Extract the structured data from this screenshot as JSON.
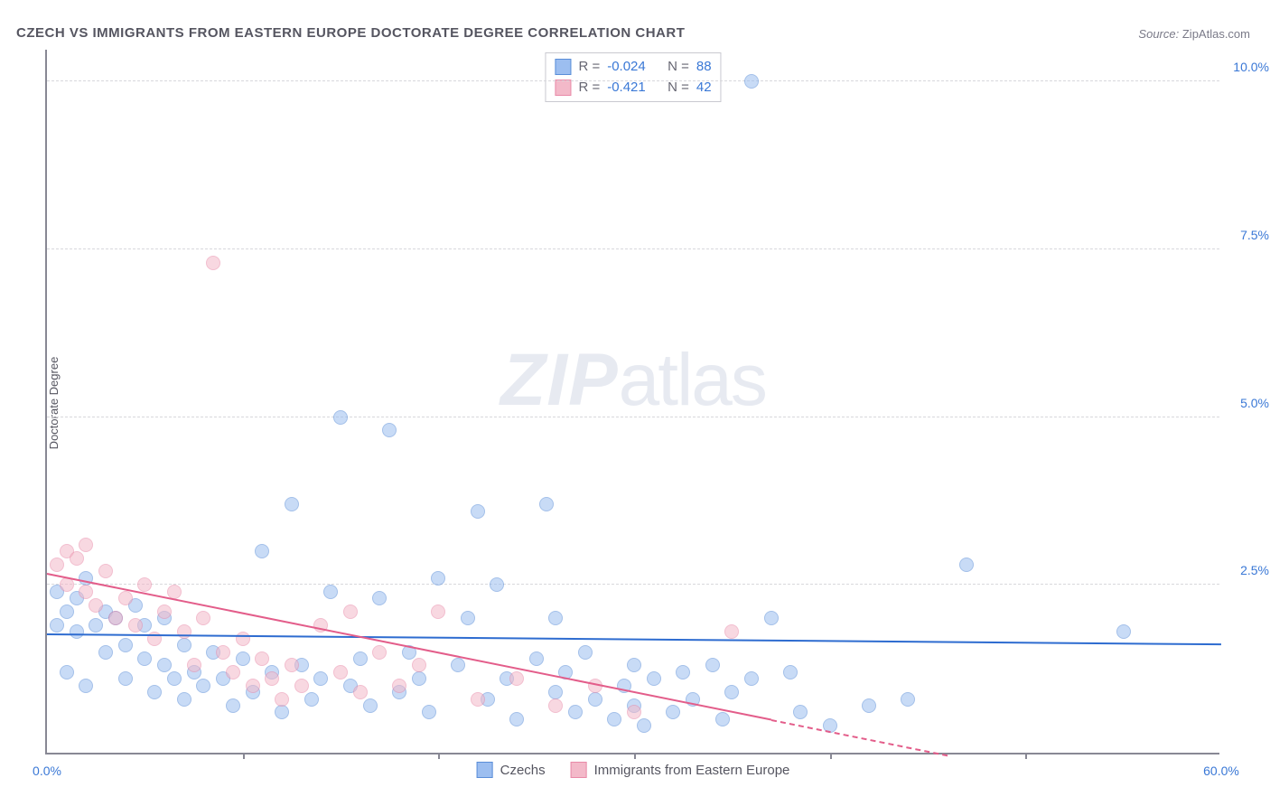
{
  "title": "CZECH VS IMMIGRANTS FROM EASTERN EUROPE DOCTORATE DEGREE CORRELATION CHART",
  "source_label": "Source:",
  "source_value": "ZipAtlas.com",
  "ylabel": "Doctorate Degree",
  "watermark_zip": "ZIP",
  "watermark_atlas": "atlas",
  "chart": {
    "type": "scatter",
    "xlim": [
      0,
      60
    ],
    "ylim": [
      0,
      10.5
    ],
    "ytick_values": [
      2.5,
      5.0,
      7.5,
      10.0
    ],
    "ytick_labels": [
      "2.5%",
      "5.0%",
      "7.5%",
      "10.0%"
    ],
    "xtick_values": [
      10,
      20,
      30,
      40,
      50
    ],
    "x_axis_labels": [
      {
        "x": 0,
        "text": "0.0%"
      },
      {
        "x": 60,
        "text": "60.0%"
      }
    ],
    "background_color": "#ffffff",
    "grid_color": "#d8d8dc",
    "axis_color": "#888894",
    "tick_label_color": "#3a78d6",
    "point_radius": 8,
    "point_opacity": 0.55
  },
  "series": [
    {
      "name": "Czechs",
      "fill_color": "#9cbef0",
      "stroke_color": "#5a8ed8",
      "trend_color": "#2e6cd0",
      "trend": {
        "x1": 0,
        "y1": 1.75,
        "x2": 60,
        "y2": 1.6,
        "dash_after": 60
      },
      "R": "-0.024",
      "N": "88",
      "points": [
        [
          0.5,
          1.9
        ],
        [
          0.5,
          2.4
        ],
        [
          1,
          2.1
        ],
        [
          1,
          1.2
        ],
        [
          1.5,
          1.8
        ],
        [
          1.5,
          2.3
        ],
        [
          2,
          2.6
        ],
        [
          2,
          1.0
        ],
        [
          2.5,
          1.9
        ],
        [
          3,
          1.5
        ],
        [
          3,
          2.1
        ],
        [
          3.5,
          2.0
        ],
        [
          4,
          1.6
        ],
        [
          4,
          1.1
        ],
        [
          4.5,
          2.2
        ],
        [
          5,
          1.4
        ],
        [
          5,
          1.9
        ],
        [
          5.5,
          0.9
        ],
        [
          6,
          1.3
        ],
        [
          6,
          2.0
        ],
        [
          6.5,
          1.1
        ],
        [
          7,
          1.6
        ],
        [
          7,
          0.8
        ],
        [
          7.5,
          1.2
        ],
        [
          8,
          1.0
        ],
        [
          8.5,
          1.5
        ],
        [
          9,
          1.1
        ],
        [
          9.5,
          0.7
        ],
        [
          10,
          1.4
        ],
        [
          10.5,
          0.9
        ],
        [
          11,
          3.0
        ],
        [
          11.5,
          1.2
        ],
        [
          12,
          0.6
        ],
        [
          12.5,
          3.7
        ],
        [
          13,
          1.3
        ],
        [
          13.5,
          0.8
        ],
        [
          14,
          1.1
        ],
        [
          14.5,
          2.4
        ],
        [
          15,
          5.0
        ],
        [
          15.5,
          1.0
        ],
        [
          16,
          1.4
        ],
        [
          16.5,
          0.7
        ],
        [
          17,
          2.3
        ],
        [
          17.5,
          4.8
        ],
        [
          18,
          0.9
        ],
        [
          18.5,
          1.5
        ],
        [
          19,
          1.1
        ],
        [
          19.5,
          0.6
        ],
        [
          20,
          2.6
        ],
        [
          21,
          1.3
        ],
        [
          21.5,
          2.0
        ],
        [
          22,
          3.6
        ],
        [
          22.5,
          0.8
        ],
        [
          23,
          2.5
        ],
        [
          23.5,
          1.1
        ],
        [
          24,
          0.5
        ],
        [
          25,
          1.4
        ],
        [
          25.5,
          3.7
        ],
        [
          26,
          0.9
        ],
        [
          26,
          2.0
        ],
        [
          26.5,
          1.2
        ],
        [
          27,
          0.6
        ],
        [
          27.5,
          1.5
        ],
        [
          28,
          0.8
        ],
        [
          29,
          0.5
        ],
        [
          29.5,
          1.0
        ],
        [
          30,
          0.7
        ],
        [
          30,
          1.3
        ],
        [
          30.5,
          0.4
        ],
        [
          31,
          1.1
        ],
        [
          32,
          0.6
        ],
        [
          32.5,
          1.2
        ],
        [
          33,
          0.8
        ],
        [
          34,
          1.3
        ],
        [
          34.5,
          0.5
        ],
        [
          35,
          0.9
        ],
        [
          36,
          1.1
        ],
        [
          37,
          2.0
        ],
        [
          38,
          1.2
        ],
        [
          38.5,
          0.6
        ],
        [
          40,
          0.4
        ],
        [
          42,
          0.7
        ],
        [
          44,
          0.8
        ],
        [
          47,
          2.8
        ],
        [
          55,
          1.8
        ],
        [
          36,
          10.0
        ]
      ]
    },
    {
      "name": "Immigrants from Eastern Europe",
      "fill_color": "#f3b9c9",
      "stroke_color": "#e98aa8",
      "trend_color": "#e35d8a",
      "trend": {
        "x1": 0,
        "y1": 2.65,
        "x2": 40,
        "y2": 0.3,
        "dash_after": 37
      },
      "R": "-0.421",
      "N": "42",
      "points": [
        [
          0.5,
          2.8
        ],
        [
          1,
          2.5
        ],
        [
          1,
          3.0
        ],
        [
          1.5,
          2.9
        ],
        [
          2,
          2.4
        ],
        [
          2,
          3.1
        ],
        [
          2.5,
          2.2
        ],
        [
          3,
          2.7
        ],
        [
          3.5,
          2.0
        ],
        [
          4,
          2.3
        ],
        [
          4.5,
          1.9
        ],
        [
          5,
          2.5
        ],
        [
          5.5,
          1.7
        ],
        [
          6,
          2.1
        ],
        [
          6.5,
          2.4
        ],
        [
          7,
          1.8
        ],
        [
          7.5,
          1.3
        ],
        [
          8,
          2.0
        ],
        [
          8.5,
          7.3
        ],
        [
          9,
          1.5
        ],
        [
          9.5,
          1.2
        ],
        [
          10,
          1.7
        ],
        [
          10.5,
          1.0
        ],
        [
          11,
          1.4
        ],
        [
          11.5,
          1.1
        ],
        [
          12,
          0.8
        ],
        [
          12.5,
          1.3
        ],
        [
          13,
          1.0
        ],
        [
          14,
          1.9
        ],
        [
          15,
          1.2
        ],
        [
          15.5,
          2.1
        ],
        [
          16,
          0.9
        ],
        [
          17,
          1.5
        ],
        [
          18,
          1.0
        ],
        [
          19,
          1.3
        ],
        [
          20,
          2.1
        ],
        [
          22,
          0.8
        ],
        [
          24,
          1.1
        ],
        [
          26,
          0.7
        ],
        [
          28,
          1.0
        ],
        [
          30,
          0.6
        ],
        [
          35,
          1.8
        ]
      ]
    }
  ],
  "legend_top": {
    "r_label": "R =",
    "n_label": "N ="
  },
  "legend_bottom_names": [
    "Czechs",
    "Immigrants from Eastern Europe"
  ]
}
